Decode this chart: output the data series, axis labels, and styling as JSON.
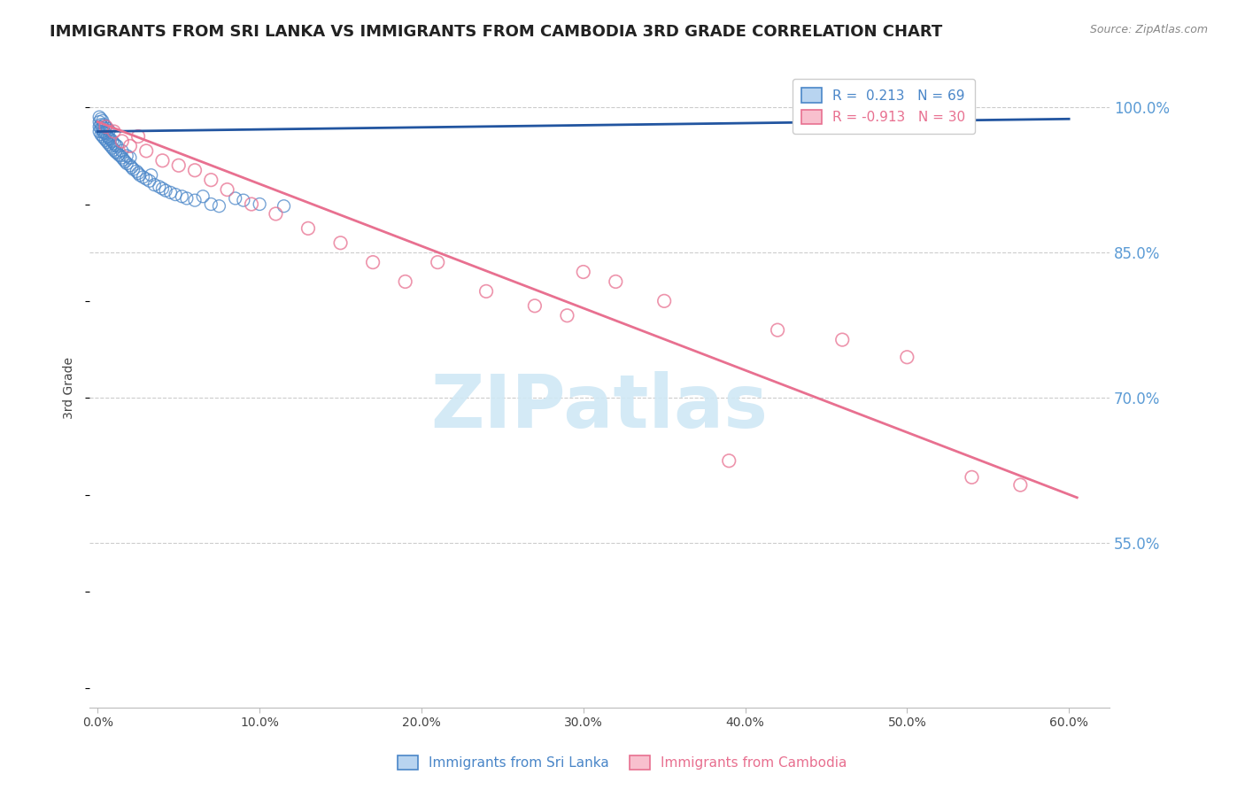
{
  "title": "IMMIGRANTS FROM SRI LANKA VS IMMIGRANTS FROM CAMBODIA 3RD GRADE CORRELATION CHART",
  "source": "Source: ZipAtlas.com",
  "ylabel": "3rd Grade",
  "xticks": [
    0.0,
    0.1,
    0.2,
    0.3,
    0.4,
    0.5,
    0.6
  ],
  "yticks_right": [
    0.55,
    0.7,
    0.85,
    1.0
  ],
  "ytick_labels_right": [
    "55.0%",
    "70.0%",
    "85.0%",
    "100.0%"
  ],
  "ylim": [
    0.38,
    1.04
  ],
  "xlim": [
    -0.005,
    0.625
  ],
  "sri_lanka_color": "#4a86c8",
  "cambodia_color": "#e87090",
  "sri_lanka_line_color": "#2255a0",
  "cambodia_line_color": "#e87090",
  "sri_lanka_R": 0.213,
  "sri_lanka_N": 69,
  "cambodia_R": -0.913,
  "cambodia_N": 30,
  "watermark_text": "ZIPatlas",
  "watermark_color": "#d0e8f5",
  "background_color": "#ffffff",
  "grid_color": "#cccccc",
  "right_tick_color": "#5b9bd5",
  "title_fontsize": 13,
  "source_fontsize": 9,
  "legend_fontsize": 11,
  "ylabel_fontsize": 10,
  "xtick_fontsize": 10,
  "sri_lanka_x": [
    0.001,
    0.001,
    0.001,
    0.001,
    0.002,
    0.002,
    0.002,
    0.002,
    0.003,
    0.003,
    0.003,
    0.003,
    0.004,
    0.004,
    0.004,
    0.005,
    0.005,
    0.005,
    0.006,
    0.006,
    0.006,
    0.007,
    0.007,
    0.007,
    0.008,
    0.008,
    0.009,
    0.009,
    0.01,
    0.01,
    0.011,
    0.011,
    0.012,
    0.012,
    0.013,
    0.014,
    0.015,
    0.015,
    0.016,
    0.017,
    0.018,
    0.018,
    0.02,
    0.02,
    0.021,
    0.022,
    0.024,
    0.025,
    0.026,
    0.028,
    0.03,
    0.032,
    0.033,
    0.035,
    0.038,
    0.04,
    0.042,
    0.045,
    0.048,
    0.052,
    0.055,
    0.06,
    0.065,
    0.07,
    0.075,
    0.085,
    0.09,
    0.1,
    0.115
  ],
  "sri_lanka_y": [
    0.975,
    0.98,
    0.985,
    0.99,
    0.972,
    0.978,
    0.982,
    0.988,
    0.97,
    0.975,
    0.98,
    0.986,
    0.968,
    0.974,
    0.982,
    0.966,
    0.973,
    0.98,
    0.964,
    0.97,
    0.978,
    0.962,
    0.968,
    0.976,
    0.96,
    0.967,
    0.958,
    0.965,
    0.956,
    0.963,
    0.954,
    0.961,
    0.953,
    0.96,
    0.951,
    0.95,
    0.948,
    0.955,
    0.946,
    0.944,
    0.942,
    0.95,
    0.94,
    0.948,
    0.938,
    0.936,
    0.934,
    0.932,
    0.93,
    0.928,
    0.926,
    0.924,
    0.93,
    0.92,
    0.918,
    0.916,
    0.914,
    0.912,
    0.91,
    0.908,
    0.906,
    0.904,
    0.908,
    0.9,
    0.898,
    0.906,
    0.904,
    0.9,
    0.898
  ],
  "cambodia_x": [
    0.005,
    0.01,
    0.015,
    0.02,
    0.025,
    0.03,
    0.04,
    0.05,
    0.06,
    0.07,
    0.08,
    0.095,
    0.11,
    0.13,
    0.15,
    0.17,
    0.19,
    0.21,
    0.24,
    0.27,
    0.29,
    0.3,
    0.32,
    0.35,
    0.39,
    0.42,
    0.46,
    0.5,
    0.54,
    0.57
  ],
  "cambodia_y": [
    0.98,
    0.975,
    0.965,
    0.96,
    0.97,
    0.955,
    0.945,
    0.94,
    0.935,
    0.925,
    0.915,
    0.9,
    0.89,
    0.875,
    0.86,
    0.84,
    0.82,
    0.84,
    0.81,
    0.795,
    0.785,
    0.83,
    0.82,
    0.8,
    0.635,
    0.77,
    0.76,
    0.742,
    0.618,
    0.61
  ],
  "sri_line_x0": 0.0,
  "sri_line_x1": 0.6,
  "sri_line_y0": 0.975,
  "sri_line_y1": 0.988,
  "cam_line_x0": 0.0,
  "cam_line_x1": 0.605,
  "cam_line_y0": 0.985,
  "cam_line_y1": 0.597
}
